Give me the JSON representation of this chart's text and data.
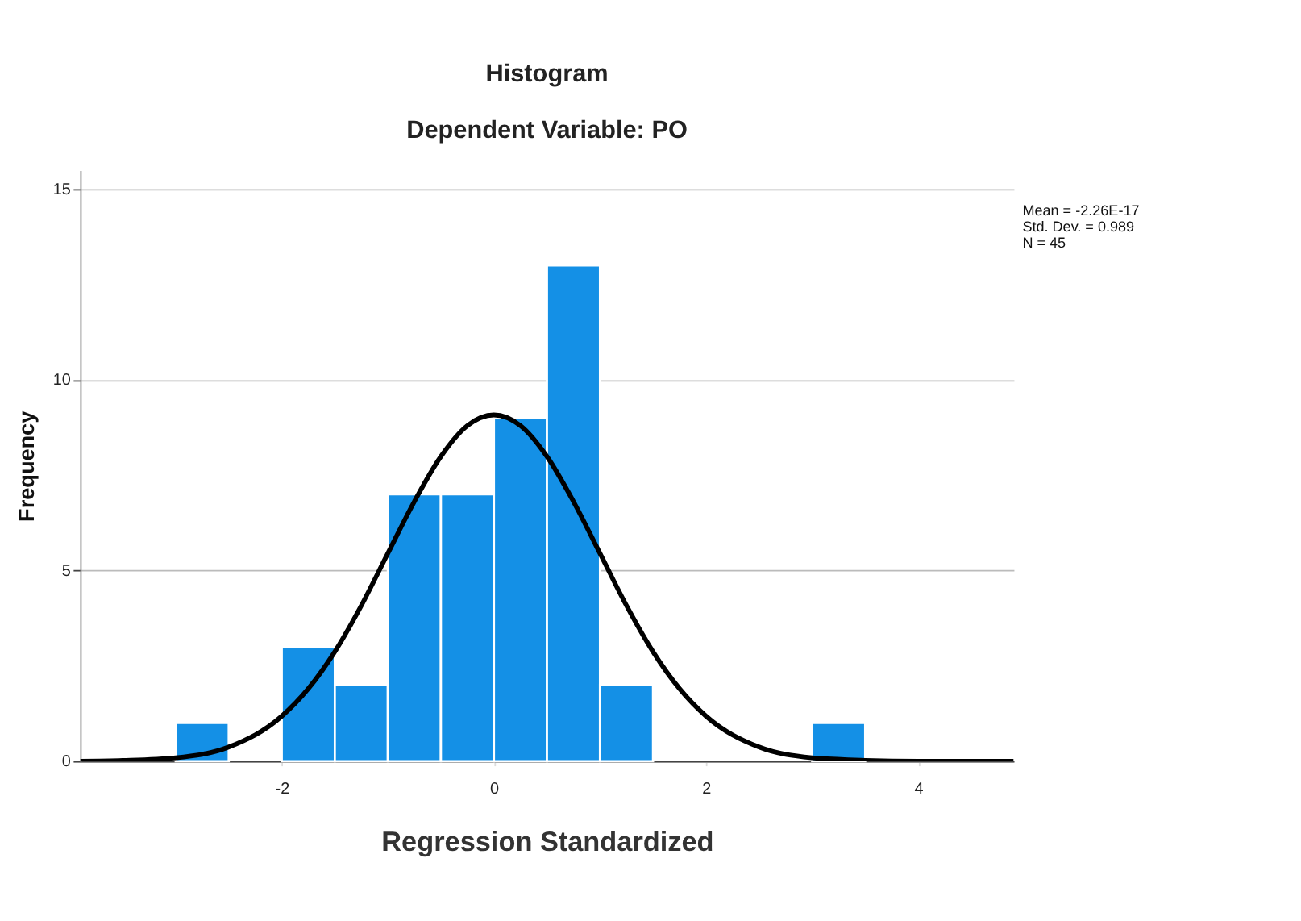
{
  "chart_data": {
    "type": "histogram",
    "title": "Histogram",
    "subtitle": "Dependent Variable: PO",
    "xlabel": "Regression Standardized",
    "ylabel": "Frequency",
    "bins": [
      -3,
      -2.5,
      -2,
      -1.5,
      -1,
      -0.5,
      0,
      0.5,
      1,
      1.5,
      2,
      2.5,
      3,
      3.5
    ],
    "values": [
      1,
      0,
      3,
      2,
      7,
      7,
      9,
      13,
      2,
      0,
      0,
      0,
      1
    ],
    "color": "#1490e6",
    "series": [
      {
        "type": "line",
        "color": "#000000",
        "x": [
          -3.9,
          -3.5,
          -3,
          -2.5,
          -2,
          -1.75,
          -1.5,
          -1.25,
          -1,
          -0.75,
          -0.5,
          -0.25,
          0,
          0.25,
          0.5,
          0.75,
          1,
          1.25,
          1.5,
          1.75,
          2,
          2.5,
          3,
          3.5,
          4,
          4.9
        ],
        "values": [
          0,
          0.02,
          0.09,
          0.37,
          1.18,
          1.9,
          2.87,
          4.08,
          5.45,
          6.81,
          7.99,
          8.8,
          9.08,
          8.8,
          7.99,
          6.81,
          5.45,
          4.08,
          2.87,
          1.9,
          1.18,
          0.37,
          0.09,
          0.02,
          0,
          0
        ]
      }
    ],
    "xlim": [
      -3.9,
      4.9
    ],
    "xticks": [
      -2,
      0,
      2,
      4
    ],
    "ylim": [
      0,
      15.5
    ],
    "yticks": [
      0,
      5,
      10,
      15
    ],
    "grid": "y",
    "annotations": [
      "Mean = -2.26E-17",
      "Std. Dev. = 0.989",
      "N = 45"
    ]
  }
}
